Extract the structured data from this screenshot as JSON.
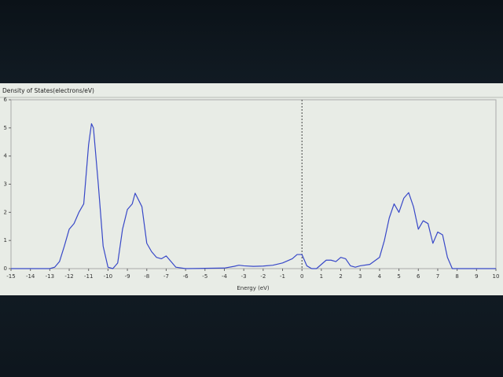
{
  "chart_data": {
    "type": "line",
    "title": "Density of States(electrons/eV)",
    "x_label": "Energy (eV)",
    "x": [
      -15,
      -13,
      -12.75,
      -12.5,
      -12.25,
      -12,
      -11.75,
      -11.5,
      -11.25,
      -11,
      -10.85,
      -10.75,
      -10.5,
      -10.25,
      -10,
      -9.75,
      -9.5,
      -9.25,
      -9,
      -8.75,
      -8.6,
      -8.25,
      -8,
      -7.75,
      -7.5,
      -7.25,
      -7,
      -6.75,
      -6.5,
      -6,
      -5,
      -4,
      -3.5,
      -3.25,
      -3,
      -2.5,
      -2,
      -1.5,
      -1,
      -0.5,
      -0.25,
      0,
      0.25,
      0.5,
      0.75,
      1,
      1.25,
      1.5,
      1.75,
      2,
      2.25,
      2.5,
      2.75,
      3,
      3.5,
      4,
      4.25,
      4.5,
      4.75,
      5,
      5.25,
      5.5,
      5.75,
      6,
      6.25,
      6.5,
      6.75,
      7,
      7.25,
      7.5,
      7.75,
      8,
      10
    ],
    "series": [
      {
        "color": "#3848c8",
        "values": [
          0,
          0,
          0.05,
          0.25,
          0.8,
          1.4,
          1.6,
          2.0,
          2.3,
          4.4,
          5.15,
          5.0,
          3.0,
          0.8,
          0.05,
          0,
          0.2,
          1.4,
          2.1,
          2.3,
          2.68,
          2.2,
          0.9,
          0.6,
          0.4,
          0.35,
          0.45,
          0.25,
          0.05,
          0,
          0.01,
          0.02,
          0.08,
          0.12,
          0.1,
          0.08,
          0.09,
          0.12,
          0.2,
          0.35,
          0.5,
          0.5,
          0.1,
          0,
          0,
          0.15,
          0.3,
          0.3,
          0.25,
          0.4,
          0.35,
          0.1,
          0.05,
          0.1,
          0.15,
          0.4,
          1.0,
          1.8,
          2.3,
          2.0,
          2.5,
          2.7,
          2.2,
          1.4,
          1.7,
          1.6,
          0.9,
          1.3,
          1.2,
          0.4,
          0,
          0,
          0
        ]
      }
    ],
    "xlim": [
      -15,
      10
    ],
    "ylim": [
      0,
      6
    ],
    "xticks": [
      -15,
      -14,
      -13,
      -12,
      -11,
      -10,
      -9,
      -8,
      -7,
      -6,
      -5,
      -4,
      -3,
      -2,
      -1,
      0,
      1,
      2,
      3,
      4,
      5,
      6,
      7,
      8,
      9,
      10
    ],
    "yticks": [
      0,
      1,
      2,
      3,
      4,
      5,
      6
    ],
    "reference_line": {
      "x": 0,
      "style": "dashed"
    },
    "grid": false
  }
}
